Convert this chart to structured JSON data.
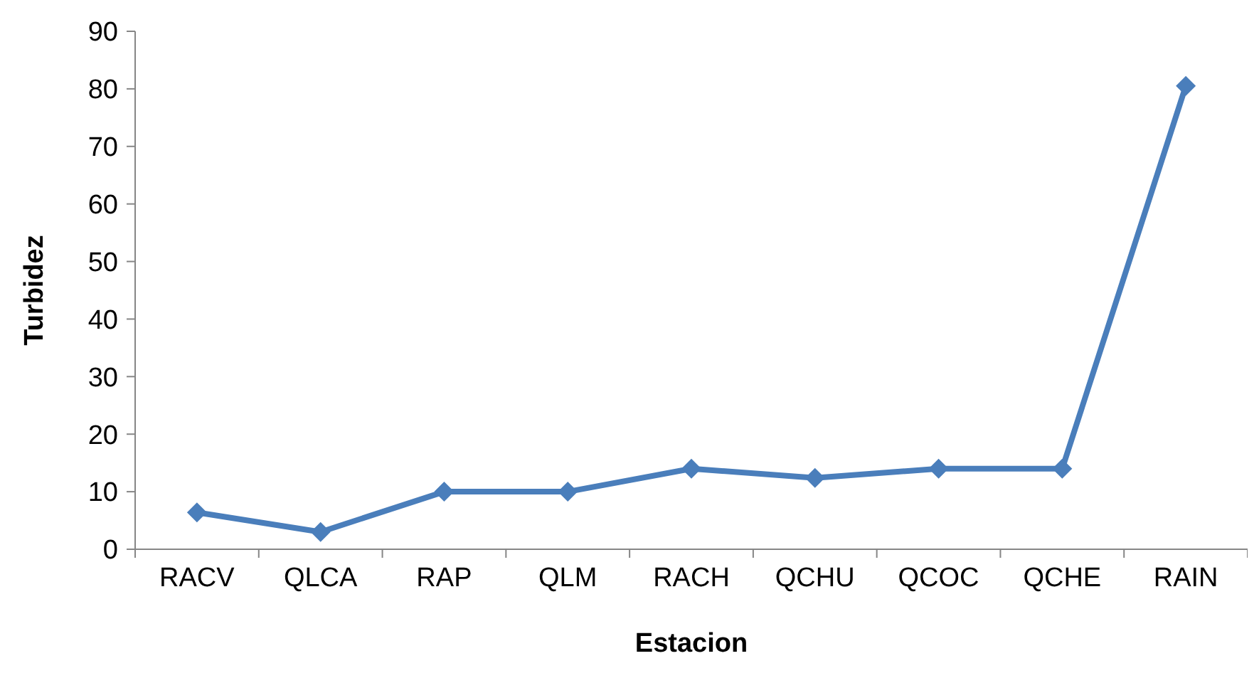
{
  "chart_data": {
    "type": "line",
    "xlabel": "Estacion",
    "ylabel": "Turbidez",
    "categories": [
      "RACV",
      "QLCA",
      "RAP",
      "QLM",
      "RACH",
      "QCHU",
      "QCOC",
      "QCHE",
      "RAIN"
    ],
    "series": [
      {
        "color": "#4a7ebb",
        "values": [
          6.4,
          3,
          10,
          10,
          14,
          12.4,
          14,
          14,
          80.5
        ]
      }
    ],
    "ylim": [
      0,
      90
    ],
    "yticks": [
      0,
      10,
      20,
      30,
      40,
      50,
      60,
      70,
      80,
      90
    ],
    "grid": false,
    "marker": "diamond",
    "line_style": "solid"
  }
}
